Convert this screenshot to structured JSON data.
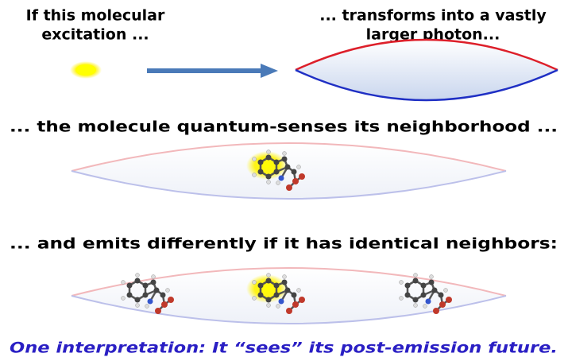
{
  "top_left_lines": [
    "If this molecular",
    "excitation ..."
  ],
  "top_right_lines": [
    "... transforms into a vastly",
    "larger photon..."
  ],
  "caption_2": "... the molecule quantum-senses its neighborhood ...",
  "caption_3": "... and emits differently if it has identical neighbors:",
  "conclusion": "One interpretation: It “sees” its post-emission future."
}
